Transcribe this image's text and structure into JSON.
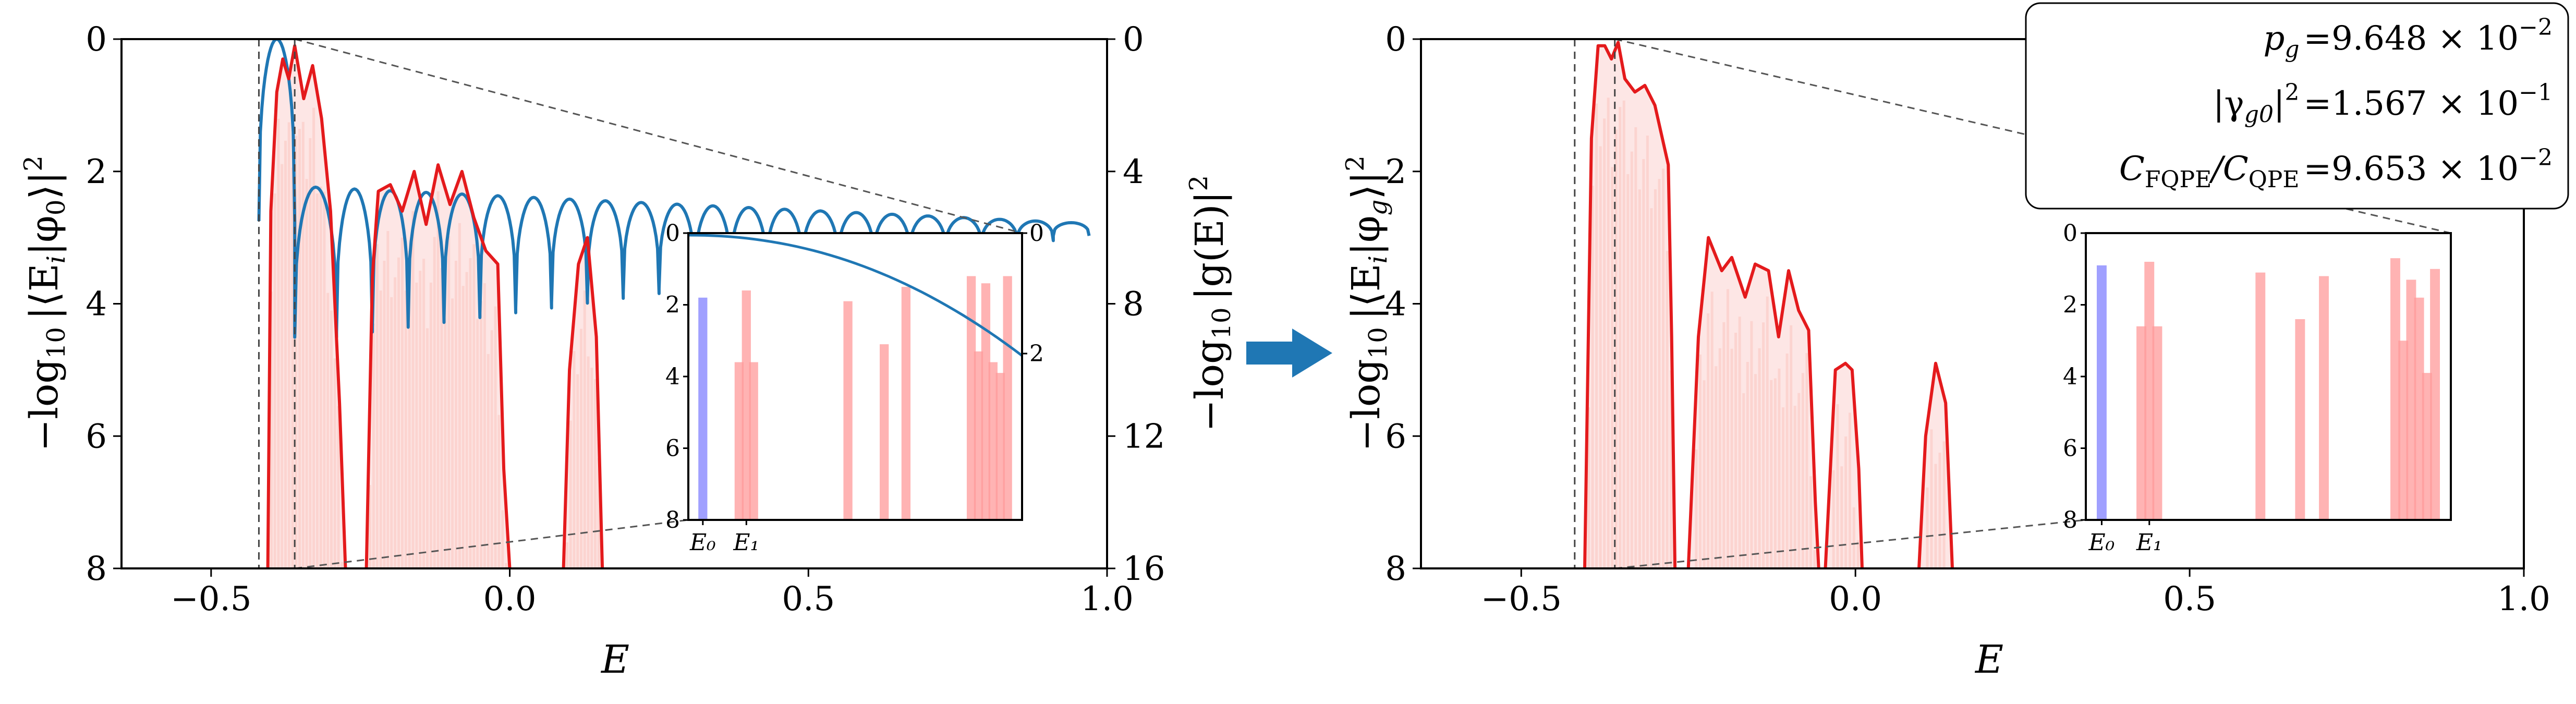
{
  "chart_data": [
    {
      "type": "bar",
      "panel": "left",
      "xlabel": "E",
      "ylabel": "−log₁₀ |⟨Eᵢ|φ₀⟩|²",
      "y2label": "−log₁₀ |g(E)|²",
      "xlim": [
        -0.65,
        1.0
      ],
      "ylim": [
        8,
        0
      ],
      "y2lim": [
        16,
        0
      ],
      "xticks": [
        -0.5,
        0.0,
        0.5,
        1.0
      ],
      "xtick_labels": [
        "−0.5",
        "0.0",
        "0.5",
        "1.0"
      ],
      "yticks": [
        0,
        2,
        4,
        6,
        8
      ],
      "ytick_labels": [
        "0",
        "2",
        "4",
        "6",
        "8"
      ],
      "y2ticks": [
        0,
        4,
        8,
        12,
        16
      ],
      "y2tick_labels": [
        "0",
        "4",
        "8",
        "12",
        "16"
      ],
      "E0": -0.42,
      "E1": -0.36,
      "bars": [
        {
          "x": -0.42,
          "y": 1.8,
          "color": "#8080ff",
          "kind": "ground"
        },
        {
          "x": -0.37,
          "y": 3.6
        },
        {
          "x": -0.36,
          "y": 1.6
        },
        {
          "x": -0.35,
          "y": 3.6
        },
        {
          "x": -0.22,
          "y": 1.9
        },
        {
          "x": -0.17,
          "y": 3.1
        },
        {
          "x": -0.14,
          "y": 1.5
        },
        {
          "x": -0.05,
          "y": 1.2
        },
        {
          "x": -0.04,
          "y": 3.3
        },
        {
          "x": -0.03,
          "y": 1.4
        },
        {
          "x": -0.02,
          "y": 3.6
        },
        {
          "x": -0.01,
          "y": 3.9
        },
        {
          "x": 0.0,
          "y": 1.2
        }
      ],
      "envelope_series": {
        "name": "|⟨E_i|φ_0⟩|² (smoothed)",
        "color": "#e41a1c",
        "segments": [
          [
            [
              -0.405,
              8.0
            ],
            [
              -0.4,
              2.6
            ],
            [
              -0.39,
              0.8
            ],
            [
              -0.38,
              0.3
            ],
            [
              -0.37,
              0.6
            ],
            [
              -0.36,
              0.1
            ],
            [
              -0.345,
              0.9
            ],
            [
              -0.33,
              0.4
            ],
            [
              -0.315,
              1.2
            ],
            [
              -0.3,
              2.6
            ],
            [
              -0.285,
              5.5
            ],
            [
              -0.275,
              8.0
            ]
          ],
          [
            [
              -0.24,
              8.0
            ],
            [
              -0.23,
              3.6
            ],
            [
              -0.22,
              2.3
            ],
            [
              -0.2,
              2.2
            ],
            [
              -0.18,
              2.6
            ],
            [
              -0.16,
              2.0
            ],
            [
              -0.14,
              2.8
            ],
            [
              -0.12,
              1.9
            ],
            [
              -0.1,
              2.5
            ],
            [
              -0.08,
              2.0
            ],
            [
              -0.06,
              2.7
            ],
            [
              -0.04,
              3.2
            ],
            [
              -0.02,
              3.4
            ],
            [
              -0.01,
              6.5
            ],
            [
              0.0,
              8.0
            ]
          ],
          [
            [
              0.09,
              8.0
            ],
            [
              0.1,
              5.0
            ],
            [
              0.115,
              3.4
            ],
            [
              0.13,
              3.0
            ],
            [
              0.145,
              4.5
            ],
            [
              0.155,
              8.0
            ]
          ]
        ]
      },
      "filter_series": {
        "name": "|g(E)|²",
        "color": "#1f77b4",
        "peaks": [
          -0.42,
          -0.36,
          -0.29,
          -0.23,
          -0.17,
          -0.11,
          -0.05,
          0.01,
          0.07,
          0.13,
          0.19,
          0.25,
          0.31,
          0.37,
          0.43,
          0.49,
          0.55,
          0.61,
          0.67,
          0.73,
          0.79,
          0.85,
          0.91,
          0.97
        ],
        "valley_depth_left": 4.9,
        "valley_depth_right": 2.9,
        "plateau_left": 2.1,
        "plateau_right": 2.8
      },
      "inset": {
        "xtick_labels": [
          "E₀",
          "E₁"
        ],
        "yticks": [
          0,
          2,
          4,
          6,
          8
        ],
        "ytick_labels": [
          "0",
          "2",
          "4",
          "6",
          "8"
        ],
        "y2ticks": [
          0,
          2
        ],
        "y2tick_labels": [
          "0",
          "2"
        ]
      }
    },
    {
      "type": "bar",
      "panel": "right",
      "xlabel": "E",
      "ylabel": "−log₁₀ |⟨Eᵢ|φ_g⟩|²",
      "xlim": [
        -0.65,
        1.0
      ],
      "ylim": [
        8,
        0
      ],
      "xticks": [
        -0.5,
        0.0,
        0.5,
        1.0
      ],
      "xtick_labels": [
        "−0.5",
        "0.0",
        "0.5",
        "1.0"
      ],
      "yticks": [
        0,
        2,
        4,
        6,
        8
      ],
      "ytick_labels": [
        "0",
        "2",
        "4",
        "6",
        "8"
      ],
      "E0": -0.42,
      "E1": -0.36,
      "bars": [
        {
          "x": -0.42,
          "y": 0.9,
          "color": "#8080ff",
          "kind": "ground"
        },
        {
          "x": -0.37,
          "y": 2.6
        },
        {
          "x": -0.36,
          "y": 0.8
        },
        {
          "x": -0.35,
          "y": 2.6
        },
        {
          "x": -0.22,
          "y": 1.1
        },
        {
          "x": -0.17,
          "y": 2.4
        },
        {
          "x": -0.14,
          "y": 1.2
        },
        {
          "x": -0.05,
          "y": 0.7
        },
        {
          "x": -0.04,
          "y": 3.0
        },
        {
          "x": -0.03,
          "y": 1.3
        },
        {
          "x": -0.02,
          "y": 1.8
        },
        {
          "x": -0.01,
          "y": 3.9
        },
        {
          "x": 0.0,
          "y": 1.0
        }
      ],
      "envelope_series": {
        "name": "|⟨E_i|φ_g⟩|² (smoothed)",
        "color": "#e41a1c",
        "segments": [
          [
            [
              -0.405,
              8.0
            ],
            [
              -0.395,
              1.5
            ],
            [
              -0.385,
              0.1
            ],
            [
              -0.375,
              0.1
            ],
            [
              -0.365,
              0.3
            ],
            [
              -0.355,
              0.05
            ],
            [
              -0.345,
              0.6
            ],
            [
              -0.33,
              0.8
            ],
            [
              -0.315,
              0.7
            ],
            [
              -0.3,
              1.0
            ],
            [
              -0.28,
              1.9
            ],
            [
              -0.275,
              4.5
            ],
            [
              -0.27,
              8.0
            ]
          ],
          [
            [
              -0.25,
              8.0
            ],
            [
              -0.235,
              4.5
            ],
            [
              -0.22,
              3.0
            ],
            [
              -0.2,
              3.5
            ],
            [
              -0.185,
              3.3
            ],
            [
              -0.165,
              3.9
            ],
            [
              -0.15,
              3.4
            ],
            [
              -0.13,
              3.5
            ],
            [
              -0.115,
              4.5
            ],
            [
              -0.1,
              3.5
            ],
            [
              -0.085,
              4.1
            ],
            [
              -0.07,
              4.4
            ],
            [
              -0.06,
              7.0
            ],
            [
              -0.055,
              8.0
            ]
          ],
          [
            [
              -0.045,
              8.0
            ],
            [
              -0.03,
              5.0
            ],
            [
              -0.015,
              4.9
            ],
            [
              -0.005,
              5.0
            ],
            [
              0.005,
              6.5
            ],
            [
              0.01,
              8.0
            ]
          ],
          [
            [
              0.095,
              8.0
            ],
            [
              0.105,
              6.0
            ],
            [
              0.12,
              4.9
            ],
            [
              0.135,
              5.5
            ],
            [
              0.145,
              8.0
            ]
          ]
        ]
      },
      "inset": {
        "xtick_labels": [
          "E₀",
          "E₁"
        ],
        "yticks": [
          0,
          2,
          4,
          6,
          8
        ],
        "ytick_labels": [
          "0",
          "2",
          "4",
          "6",
          "8"
        ]
      },
      "annotation": {
        "lines": [
          "p_g = 9.648 × 10⁻²",
          "|γ_g0|² = 1.567 × 10⁻¹",
          "C_FQPE / C_QPE = 9.653 × 10⁻²"
        ]
      }
    }
  ],
  "colors": {
    "envelope": "#e41a1c",
    "bars": "#ff9999",
    "ground_bar": "#8080ff",
    "filter": "#1f77b4",
    "arrow": "#1f77b4",
    "faint_fill": "#fde0de"
  },
  "annotation_text": {
    "pg_label": "p",
    "pg_sub": "g",
    "pg_value": "=9.648 × 10",
    "pg_exp": "−2",
    "gamma_label": "|γ",
    "gamma_sub": "g0",
    "gamma_mid": "|",
    "gamma_sq": "2",
    "gamma_value": "=1.567 × 10",
    "gamma_exp": "−1",
    "c_label": "C",
    "c_sub1": "FQPE",
    "c_slash": "/C",
    "c_sub2": "QPE",
    "c_value": "=9.653 × 10",
    "c_exp": "−2"
  },
  "axis_text": {
    "left_ylabel_main": "−log",
    "log_sub": "10",
    "left_ylabel_tail": "|⟨E",
    "i_sub": "i",
    "left_ylabel_end": "|φ",
    "zero_sub": "0",
    "close": "⟩|",
    "sq": "2",
    "right_ylabel_main": "−log",
    "right_ylabel_tail": "|g(E)|",
    "g_sub": "g",
    "xlabel": "E"
  }
}
